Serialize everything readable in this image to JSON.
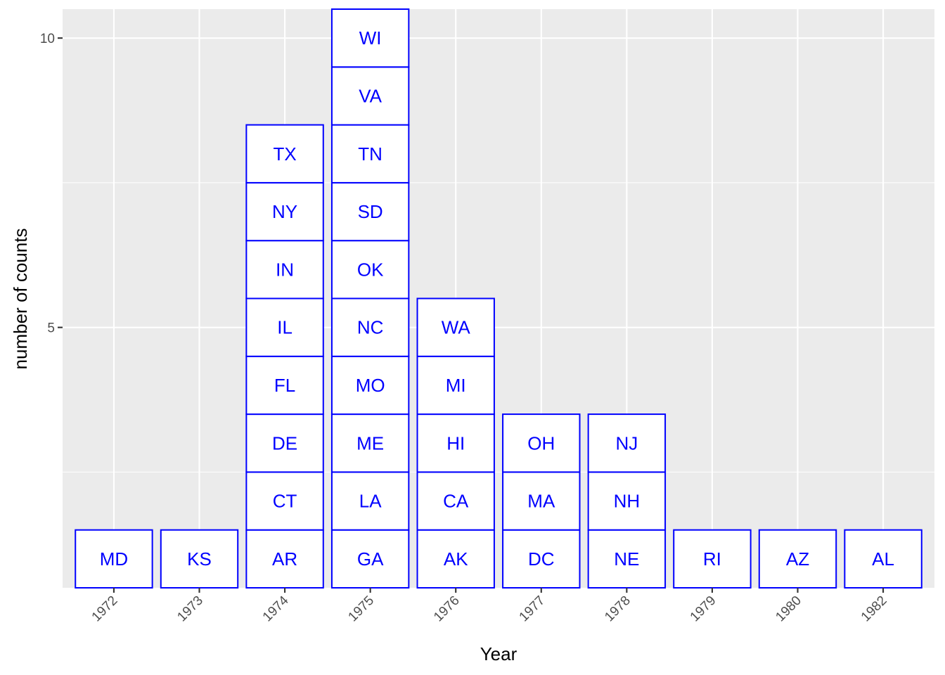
{
  "chart_data": {
    "type": "bar",
    "title": "",
    "xlabel": "Year",
    "ylabel": "number of counts",
    "categories": [
      "1972",
      "1973",
      "1974",
      "1975",
      "1976",
      "1977",
      "1978",
      "1979",
      "1980",
      "1982"
    ],
    "values": [
      1,
      1,
      8,
      10,
      5,
      3,
      3,
      1,
      1,
      1
    ],
    "stacks": [
      [
        "MD"
      ],
      [
        "KS"
      ],
      [
        "AR",
        "CT",
        "DE",
        "FL",
        "IL",
        "IN",
        "NY",
        "TX"
      ],
      [
        "GA",
        "LA",
        "ME",
        "MO",
        "NC",
        "OK",
        "SD",
        "TN",
        "VA",
        "WI"
      ],
      [
        "AK",
        "CA",
        "HI",
        "MI",
        "WA"
      ],
      [
        "DC",
        "MA",
        "OH"
      ],
      [
        "NE",
        "NH",
        "NJ"
      ],
      [
        "RI"
      ],
      [
        "AZ"
      ],
      [
        "AL"
      ]
    ],
    "yticks": [
      5,
      10
    ],
    "ylim": [
      0.5,
      10.5
    ],
    "grid": true,
    "colors": {
      "panel": "#ebebeb",
      "grid": "#ffffff",
      "tile_fill": "#ffffff",
      "tile_border": "#0000ff",
      "tile_text": "#0000ff"
    }
  }
}
